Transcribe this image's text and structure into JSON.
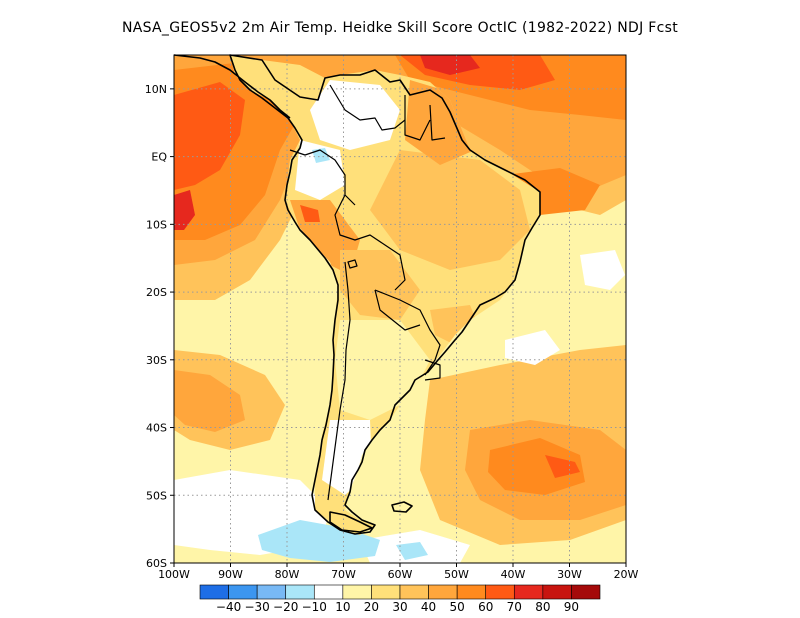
{
  "title": "NASA_GEOS5v2  2m Air Temp. Heidke Skill Score OctIC (1982-2022) NDJ Fcst",
  "map": {
    "lon_range": [
      -100,
      -20
    ],
    "lat_range": [
      -60,
      15
    ],
    "lat_ticks": [
      {
        "value": 10,
        "label": "10N"
      },
      {
        "value": 0,
        "label": "EQ"
      },
      {
        "value": -10,
        "label": "10S"
      },
      {
        "value": -20,
        "label": "20S"
      },
      {
        "value": -30,
        "label": "30S"
      },
      {
        "value": -40,
        "label": "40S"
      },
      {
        "value": -50,
        "label": "50S"
      },
      {
        "value": -60,
        "label": "60S"
      }
    ],
    "lon_ticks": [
      {
        "value": -100,
        "label": "100W"
      },
      {
        "value": -90,
        "label": "90W"
      },
      {
        "value": -80,
        "label": "80W"
      },
      {
        "value": -70,
        "label": "70W"
      },
      {
        "value": -60,
        "label": "60W"
      },
      {
        "value": -50,
        "label": "50W"
      },
      {
        "value": -40,
        "label": "40W"
      },
      {
        "value": -30,
        "label": "30W"
      },
      {
        "value": -20,
        "label": "20W"
      }
    ],
    "grid": true
  },
  "colorbar": {
    "bins": [
      {
        "color": "#1e6ee6"
      },
      {
        "color": "#3c96f0"
      },
      {
        "color": "#78b9f5"
      },
      {
        "color": "#aae6f8"
      },
      {
        "color": "#ffffff"
      },
      {
        "color": "#fff5a8"
      },
      {
        "color": "#ffe07a"
      },
      {
        "color": "#ffc35a"
      },
      {
        "color": "#ffa63c"
      },
      {
        "color": "#ff8a1e"
      },
      {
        "color": "#ff5a14"
      },
      {
        "color": "#e6281e"
      },
      {
        "color": "#c8140f"
      },
      {
        "color": "#a50a0a"
      }
    ],
    "labels": [
      "-40",
      "-30",
      "-20",
      "-10",
      "10",
      "20",
      "30",
      "40",
      "50",
      "60",
      "70",
      "80",
      "90"
    ]
  }
}
